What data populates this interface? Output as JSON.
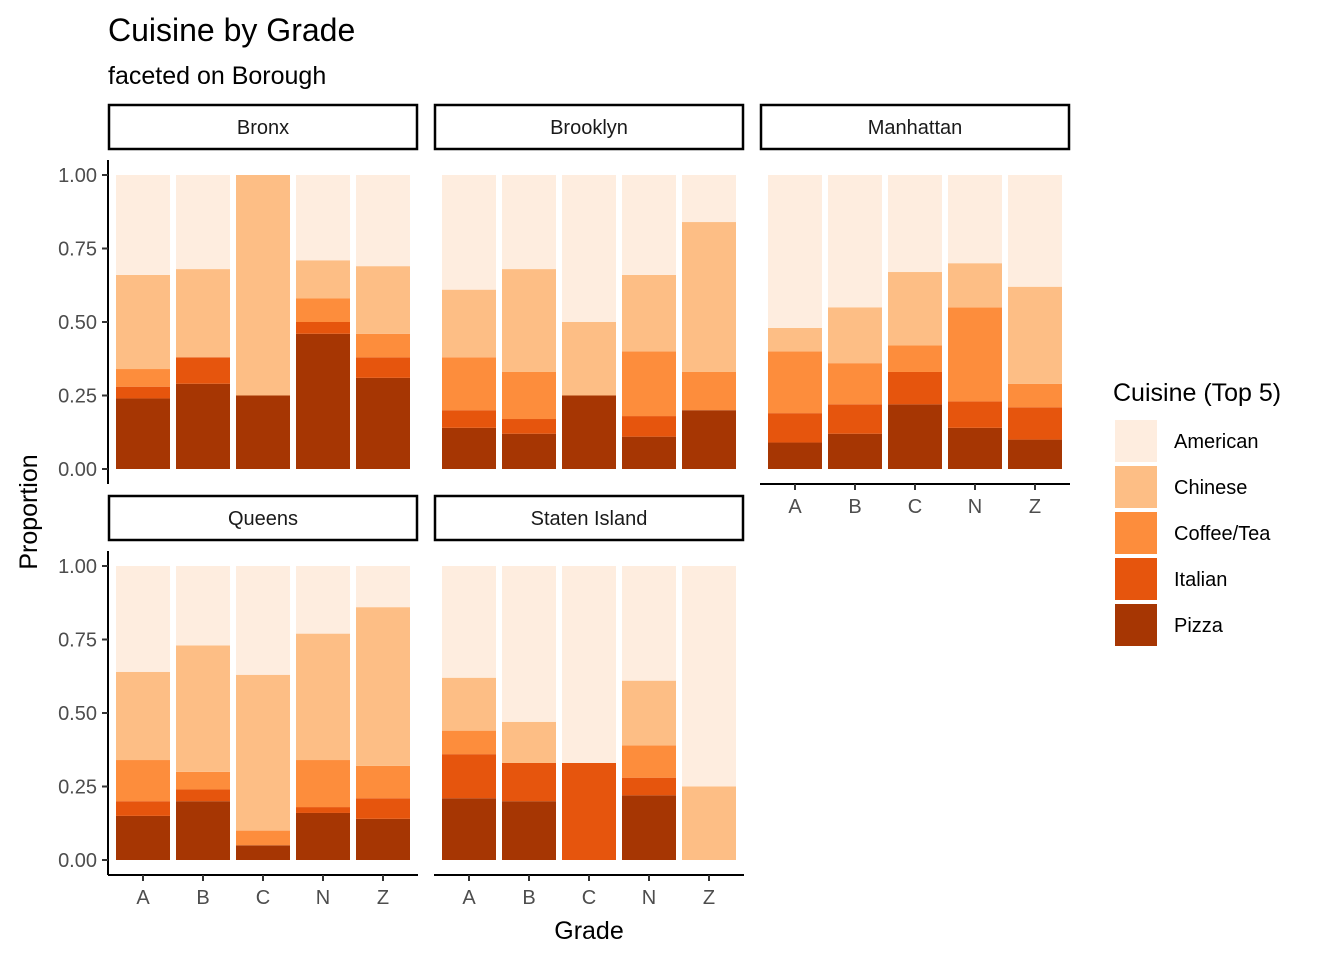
{
  "chart_data": {
    "type": "bar",
    "title": "Cuisine by Grade",
    "subtitle": "faceted on Borough",
    "xlabel": "Grade",
    "ylabel": "Proportion",
    "ylim": [
      0,
      1
    ],
    "yticks": [
      "0.00",
      "0.25",
      "0.50",
      "0.75",
      "1.00"
    ],
    "categories": [
      "A",
      "B",
      "C",
      "N",
      "Z"
    ],
    "stacking": "proportional (fill)",
    "legend": {
      "title": "Cuisine (Top 5)",
      "position": "right",
      "entries": [
        {
          "name": "American",
          "color": "#feeddf"
        },
        {
          "name": "Chinese",
          "color": "#fdbe85"
        },
        {
          "name": "Coffee/Tea",
          "color": "#fd8d3c"
        },
        {
          "name": "Italian",
          "color": "#e6550d"
        },
        {
          "name": "Pizza",
          "color": "#a63603"
        }
      ]
    },
    "stack_order_bottom_to_top": [
      "Pizza",
      "Italian",
      "Coffee/Tea",
      "Chinese",
      "American"
    ],
    "facets": [
      {
        "name": "Bronx",
        "series": [
          {
            "name": "Pizza",
            "values": [
              0.24,
              0.29,
              0.25,
              0.46,
              0.31
            ]
          },
          {
            "name": "Italian",
            "values": [
              0.04,
              0.09,
              0.0,
              0.04,
              0.07
            ]
          },
          {
            "name": "Coffee/Tea",
            "values": [
              0.06,
              0.0,
              0.0,
              0.08,
              0.08
            ]
          },
          {
            "name": "Chinese",
            "values": [
              0.32,
              0.3,
              0.75,
              0.13,
              0.23
            ]
          },
          {
            "name": "American",
            "values": [
              0.34,
              0.32,
              0.0,
              0.29,
              0.31
            ]
          }
        ]
      },
      {
        "name": "Brooklyn",
        "series": [
          {
            "name": "Pizza",
            "values": [
              0.14,
              0.12,
              0.25,
              0.11,
              0.2
            ]
          },
          {
            "name": "Italian",
            "values": [
              0.06,
              0.05,
              0.0,
              0.07,
              0.0
            ]
          },
          {
            "name": "Coffee/Tea",
            "values": [
              0.18,
              0.16,
              0.0,
              0.22,
              0.13
            ]
          },
          {
            "name": "Chinese",
            "values": [
              0.23,
              0.35,
              0.25,
              0.26,
              0.51
            ]
          },
          {
            "name": "American",
            "values": [
              0.39,
              0.32,
              0.5,
              0.34,
              0.16
            ]
          }
        ]
      },
      {
        "name": "Manhattan",
        "series": [
          {
            "name": "Pizza",
            "values": [
              0.09,
              0.12,
              0.22,
              0.14,
              0.1
            ]
          },
          {
            "name": "Italian",
            "values": [
              0.1,
              0.1,
              0.11,
              0.09,
              0.11
            ]
          },
          {
            "name": "Coffee/Tea",
            "values": [
              0.21,
              0.14,
              0.09,
              0.32,
              0.08
            ]
          },
          {
            "name": "Chinese",
            "values": [
              0.08,
              0.19,
              0.25,
              0.15,
              0.33
            ]
          },
          {
            "name": "American",
            "values": [
              0.52,
              0.45,
              0.33,
              0.3,
              0.38
            ]
          }
        ]
      },
      {
        "name": "Queens",
        "series": [
          {
            "name": "Pizza",
            "values": [
              0.15,
              0.2,
              0.05,
              0.16,
              0.14
            ]
          },
          {
            "name": "Italian",
            "values": [
              0.05,
              0.04,
              0.0,
              0.02,
              0.07
            ]
          },
          {
            "name": "Coffee/Tea",
            "values": [
              0.14,
              0.06,
              0.05,
              0.16,
              0.11
            ]
          },
          {
            "name": "Chinese",
            "values": [
              0.3,
              0.43,
              0.53,
              0.43,
              0.54
            ]
          },
          {
            "name": "American",
            "values": [
              0.36,
              0.27,
              0.37,
              0.23,
              0.14
            ]
          }
        ]
      },
      {
        "name": "Staten Island",
        "series": [
          {
            "name": "Pizza",
            "values": [
              0.21,
              0.2,
              0.0,
              0.22,
              0.0
            ]
          },
          {
            "name": "Italian",
            "values": [
              0.15,
              0.13,
              0.33,
              0.06,
              0.0
            ]
          },
          {
            "name": "Coffee/Tea",
            "values": [
              0.08,
              0.0,
              0.0,
              0.11,
              0.0
            ]
          },
          {
            "name": "Chinese",
            "values": [
              0.18,
              0.14,
              0.0,
              0.22,
              0.25
            ]
          },
          {
            "name": "American",
            "values": [
              0.38,
              0.53,
              0.67,
              0.39,
              0.75
            ]
          }
        ]
      }
    ]
  }
}
